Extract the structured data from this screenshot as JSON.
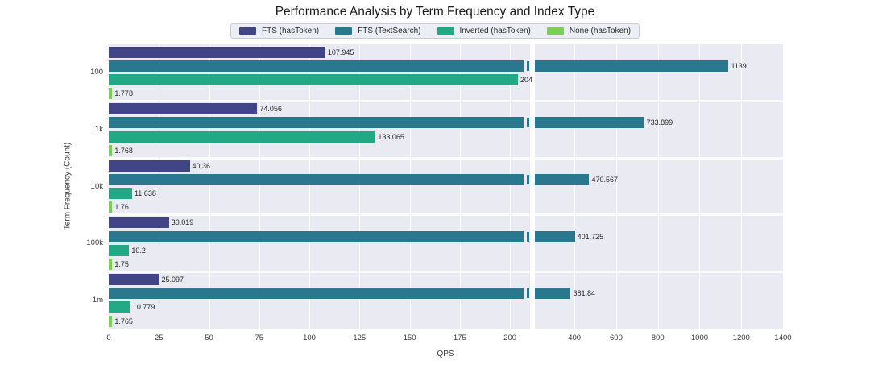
{
  "chart_data": {
    "type": "bar",
    "orientation": "horizontal",
    "title": "Performance Analysis by Term Frequency and Index Type",
    "xlabel": "QPS",
    "ylabel": "Term Frequency (Count)",
    "categories": [
      "100",
      "1k",
      "10k",
      "100k",
      "1m"
    ],
    "series": [
      {
        "name": "FTS (hasToken)",
        "color": "#414487",
        "values": [
          107.945,
          74.056,
          40.36,
          30.019,
          25.097
        ]
      },
      {
        "name": "FTS (TextSearch)",
        "color": "#2a788e",
        "values": [
          1139,
          733.899,
          470.567,
          401.725,
          381.84
        ]
      },
      {
        "name": "Inverted (hasToken)",
        "color": "#22a884",
        "values": [
          204,
          133.065,
          11.638,
          10.2,
          10.779
        ]
      },
      {
        "name": "None (hasToken)",
        "color": "#7ad151",
        "values": [
          1.778,
          1.768,
          1.76,
          1.75,
          1.765
        ]
      }
    ],
    "axis_break": {
      "left_range": [
        0,
        210
      ],
      "left_ticks": [
        0,
        25,
        50,
        75,
        100,
        125,
        150,
        175,
        200
      ],
      "right_range": [
        210,
        1400
      ],
      "right_ticks": [
        400,
        600,
        800,
        1000,
        1200,
        1400
      ]
    },
    "legend_position": "top",
    "grid": true,
    "panel_bg": "#eaeaf2"
  }
}
